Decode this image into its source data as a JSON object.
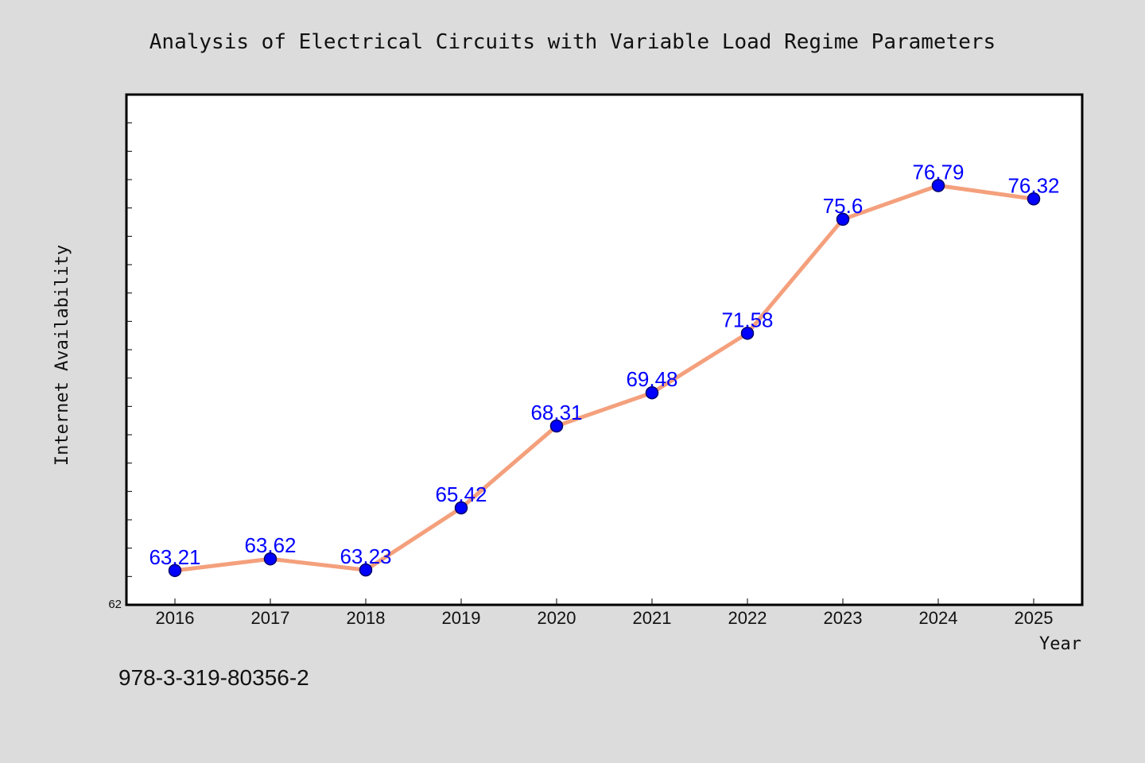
{
  "chart_data": {
    "type": "line",
    "title": "Analysis of Electrical Circuits with Variable Load Regime Parameters",
    "xlabel": "Year",
    "ylabel": "Internet Availability",
    "x": [
      "2016",
      "2017",
      "2018",
      "2019",
      "2020",
      "2021",
      "2022",
      "2023",
      "2024",
      "2025"
    ],
    "values": [
      63.21,
      63.62,
      63.23,
      65.42,
      68.31,
      69.48,
      71.58,
      75.6,
      76.79,
      76.32
    ],
    "data_labels": [
      "63.21",
      "63.62",
      "63.23",
      "65.42",
      "68.31",
      "69.48",
      "71.58",
      "75.6",
      "76.79",
      "76.32"
    ],
    "ylim": [
      62,
      80
    ],
    "yticks_labeled": [
      "62"
    ],
    "grid": false,
    "line_color": "#f4a07c",
    "marker_color": "#0000ff",
    "label_color": "#0000ff"
  },
  "footer_text": "978-3-319-80356-2",
  "colors": {
    "background": "#dcdcdc",
    "plot_background": "#ffffff"
  }
}
